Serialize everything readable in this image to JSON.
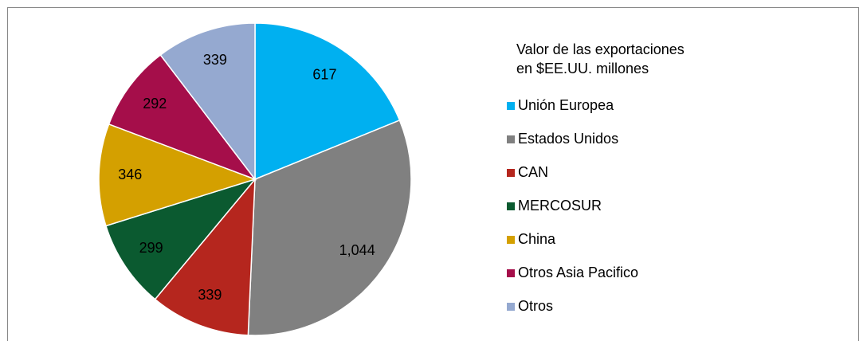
{
  "chart_data": {
    "type": "pie",
    "legend_title": "Valor de las exportaciones en $EE.UU. millones",
    "categories": [
      "Unión Europea",
      "Estados Unidos",
      "CAN",
      "MERCOSUR",
      "China",
      "Otros Asia Pacifico",
      "Otros"
    ],
    "values": [
      617,
      1044,
      339,
      299,
      346,
      292,
      339
    ],
    "value_labels": [
      "617",
      "1,044",
      "339",
      "299",
      "346",
      "292",
      "339"
    ],
    "colors": [
      "#00b0f0",
      "#808080",
      "#b5261e",
      "#0b5a30",
      "#d4a000",
      "#a50e4a",
      "#95a9d0"
    ],
    "legend": "right"
  }
}
